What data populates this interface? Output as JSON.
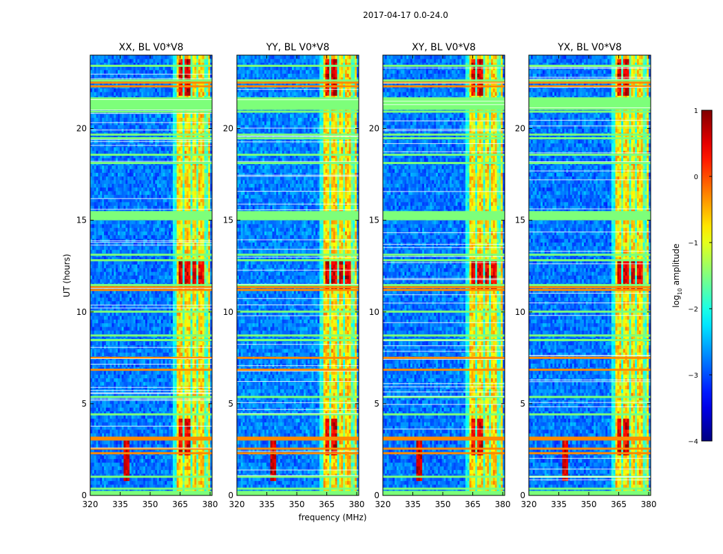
{
  "title": "2017-04-17 0.0-24.0",
  "chart_data": {
    "type": "heatmap",
    "suptitle": "2017-04-17 0.0-24.0",
    "xlabel": "frequency (MHz)",
    "ylabel": "UT (hours)",
    "xlim": [
      320,
      381
    ],
    "ylim": [
      0,
      24
    ],
    "xticks": [
      {
        "value": 320,
        "label": "320"
      },
      {
        "value": 335,
        "label": "335"
      },
      {
        "value": 350,
        "label": "350"
      },
      {
        "value": 365,
        "label": "365"
      },
      {
        "value": 380,
        "label": "380"
      }
    ],
    "yticks": [
      {
        "value": 0,
        "label": "0"
      },
      {
        "value": 5,
        "label": "5"
      },
      {
        "value": 10,
        "label": "10"
      },
      {
        "value": 15,
        "label": "15"
      },
      {
        "value": 20,
        "label": "20"
      }
    ],
    "panels": [
      {
        "title": "XX, BL V0*V8",
        "polarization": "XX"
      },
      {
        "title": "YY, BL V0*V8",
        "polarization": "YY"
      },
      {
        "title": "XY, BL V0*V8",
        "polarization": "XY"
      },
      {
        "title": "YX, BL V0*V8",
        "polarization": "YX"
      }
    ],
    "colorbar": {
      "label": "log",
      "label_sub": "10",
      "label_rest": " amplitude",
      "range": [
        -4,
        1
      ],
      "ticks": [
        {
          "value": 1,
          "label": "1"
        },
        {
          "value": 0,
          "label": "0"
        },
        {
          "value": -1,
          "label": "−1"
        },
        {
          "value": -2,
          "label": "−2"
        },
        {
          "value": -3,
          "label": "−3"
        },
        {
          "value": -4,
          "label": "−4"
        }
      ],
      "colormap": "jet"
    },
    "features": {
      "flagged_hours": [
        0.15,
        0.35,
        1.0,
        4.4,
        5.35,
        8.45,
        8.7,
        10.0,
        11.45,
        12.8,
        13.1,
        15.05,
        15.2,
        15.4,
        18.1,
        18.55,
        19.45,
        19.65,
        20.9,
        21.05,
        21.2,
        22.6,
        23.4
      ],
      "bright_hours": [
        2.3,
        2.55,
        3.05,
        3.15,
        6.85,
        7.5,
        11.2,
        11.35,
        22.3,
        22.5
      ],
      "rfi_bands_mhz": [
        [
          363.5,
          366.5
        ],
        [
          367.5,
          370.5
        ],
        [
          371.5,
          373
        ],
        [
          374.5,
          377.5
        ],
        [
          379,
          380
        ]
      ],
      "strong_blocks": [
        {
          "band_mhz": [
            364,
            366.5
          ],
          "hours": [
            21.8,
            23.8
          ]
        },
        {
          "band_mhz": [
            367.5,
            370
          ],
          "hours": [
            21.8,
            23.8
          ]
        },
        {
          "band_mhz": [
            364,
            366.5
          ],
          "hours": [
            11.3,
            12.8
          ]
        },
        {
          "band_mhz": [
            367.5,
            370
          ],
          "hours": [
            11.3,
            12.8
          ]
        },
        {
          "band_mhz": [
            371.5,
            373
          ],
          "hours": [
            11.3,
            12.8
          ]
        },
        {
          "band_mhz": [
            374.5,
            377
          ],
          "hours": [
            11.3,
            12.8
          ]
        },
        {
          "band_mhz": [
            364,
            366.5
          ],
          "hours": [
            2.2,
            4.2
          ]
        },
        {
          "band_mhz": [
            367.5,
            370
          ],
          "hours": [
            2.2,
            4.2
          ]
        }
      ],
      "rfi_source_mhz": 338,
      "rfi_source_hours": [
        0.8,
        3.0
      ]
    }
  }
}
